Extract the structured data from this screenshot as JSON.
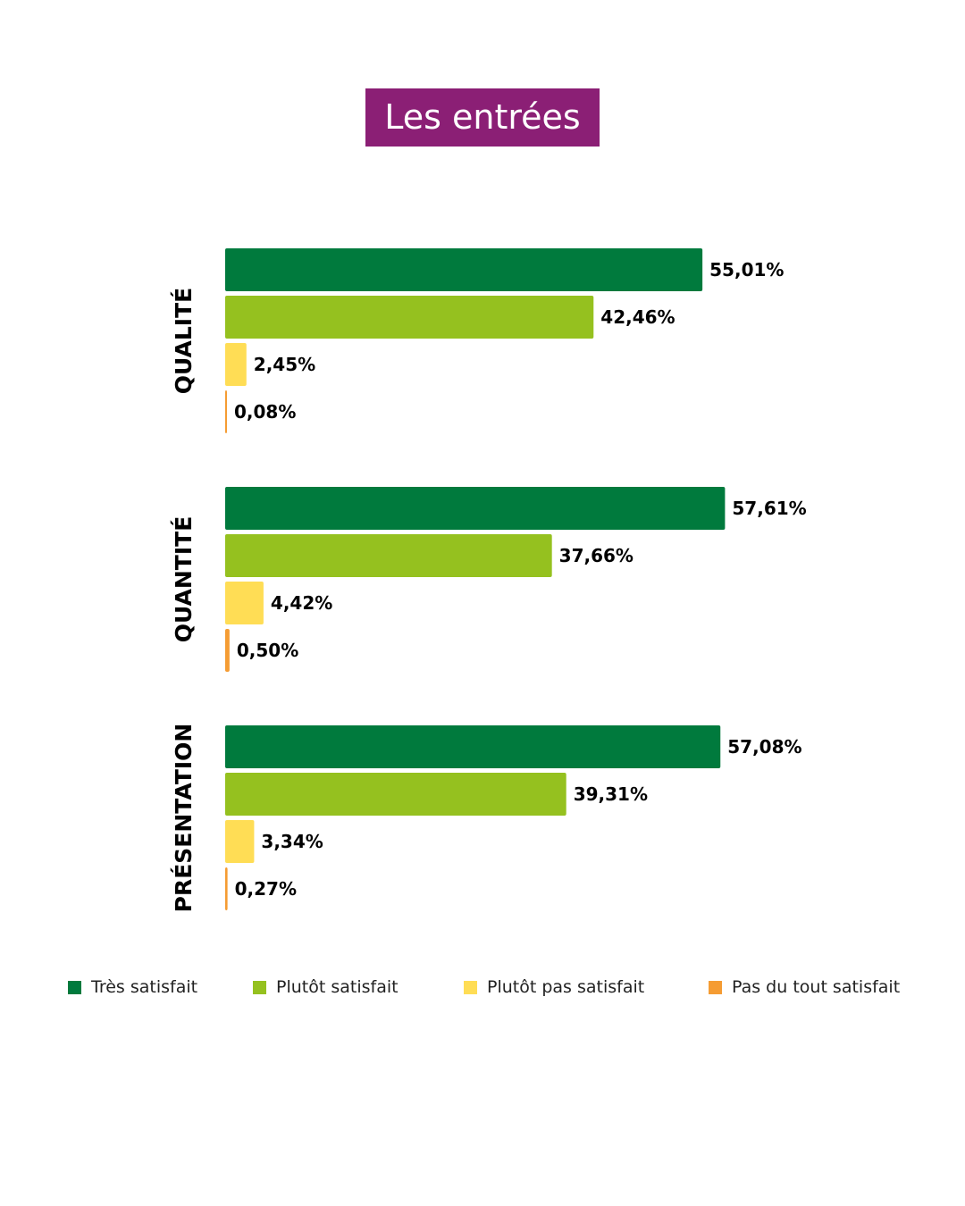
{
  "title": "Les entrées",
  "colors": {
    "title_bg": "#8b1f75",
    "tres_satisfait": "#007a3d",
    "plutot_satisfait": "#95c11f",
    "plutot_pas_satisfait": "#ffdd55",
    "pas_du_tout_satisfait": "#f59c33"
  },
  "legend": [
    {
      "label": "Très satisfait",
      "color": "#007a3d"
    },
    {
      "label": "Plutôt satisfait",
      "color": "#95c11f"
    },
    {
      "label": "Plutôt pas satisfait",
      "color": "#ffdd55"
    },
    {
      "label": "Pas du tout satisfait",
      "color": "#f59c33"
    }
  ],
  "chart_data": {
    "type": "bar",
    "orientation": "horizontal",
    "categories": [
      "QUALITÉ",
      "QUANTITÉ",
      "PRÉSENTATION"
    ],
    "series": [
      {
        "name": "Très satisfait",
        "values": [
          55.01,
          57.61,
          57.08
        ],
        "labels": [
          "55,01%",
          "57,61%",
          "57,08%"
        ],
        "color": "#007a3d"
      },
      {
        "name": "Plutôt satisfait",
        "values": [
          42.46,
          37.66,
          39.31
        ],
        "labels": [
          "42,46%",
          "37,66%",
          "39,31%"
        ],
        "color": "#95c11f"
      },
      {
        "name": "Plutôt pas satisfait",
        "values": [
          2.45,
          4.42,
          3.34
        ],
        "labels": [
          "2,45%",
          "4,42%",
          "3,34%"
        ],
        "color": "#ffdd55"
      },
      {
        "name": "Pas du tout satisfait",
        "values": [
          0.08,
          0.5,
          0.27
        ],
        "labels": [
          "0,08%",
          "0,50%",
          "0,27%"
        ],
        "color": "#f59c33"
      }
    ],
    "xlim": [
      0,
      100
    ],
    "grid": false,
    "legend_position": "bottom"
  }
}
